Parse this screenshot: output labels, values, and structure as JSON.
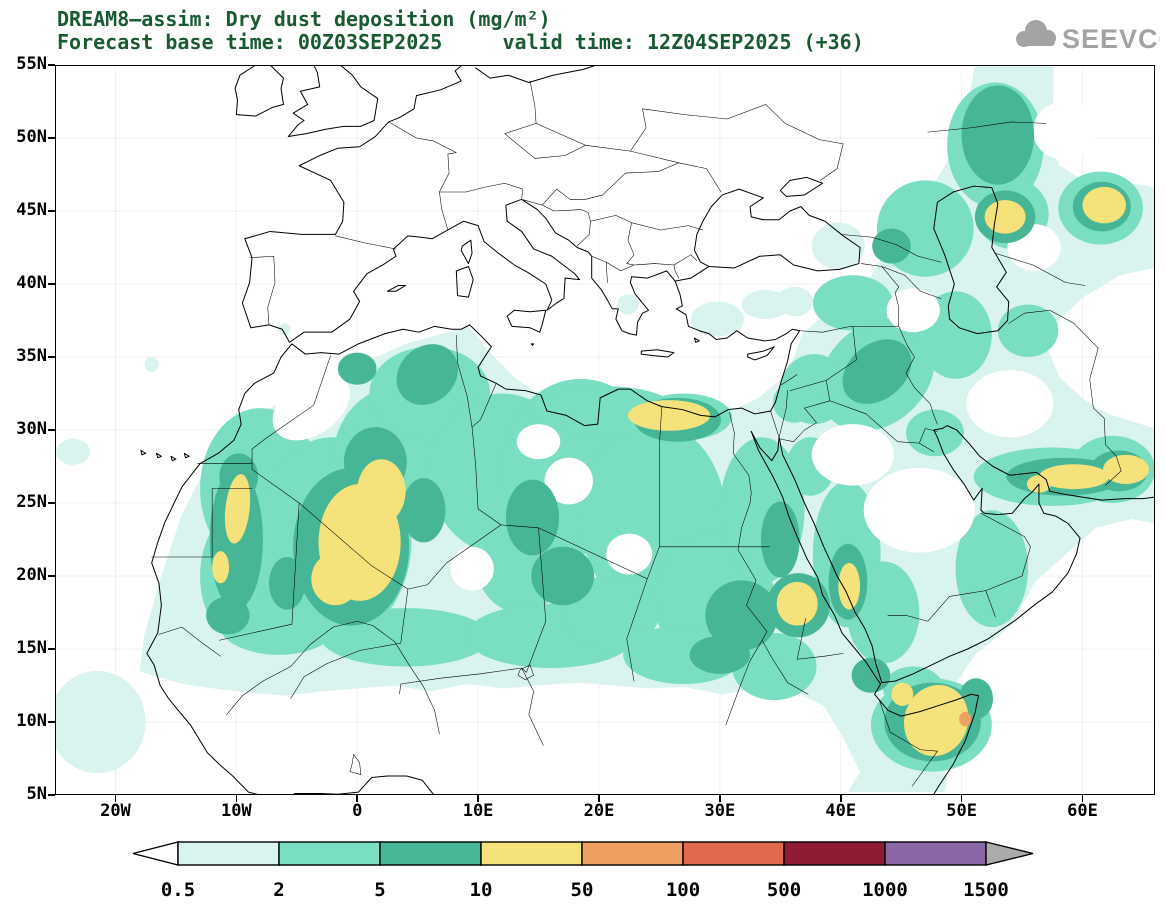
{
  "header": {
    "line1": "DREAM8—assim: Dry dust deposition (mg/m²)",
    "line2": "Forecast base time: 00Z03SEP2025     valid time: 12Z04SEP2025 (+36)",
    "title_color": "#1a5a32"
  },
  "logo": {
    "name": "SEEVCCC",
    "color": "#a3a3a3"
  },
  "axes": {
    "lat_ticks": [
      "55N",
      "50N",
      "45N",
      "40N",
      "35N",
      "30N",
      "25N",
      "20N",
      "15N",
      "10N",
      "5N"
    ],
    "lon_ticks": [
      "20W",
      "10W",
      "0",
      "10E",
      "20E",
      "30E",
      "40E",
      "50E",
      "60E"
    ]
  },
  "colorbar": {
    "levels": [
      "0.5",
      "2",
      "5",
      "10",
      "50",
      "100",
      "500",
      "1000",
      "1500"
    ],
    "colors": [
      "#ffffff",
      "#d9f3ef",
      "#79dec2",
      "#46b697",
      "#f6e27a",
      "#eea063",
      "#e06a4e",
      "#8e1d33",
      "#8a68a8",
      "#ababab"
    ]
  },
  "chart_data": {
    "type": "heatmap",
    "title": "DREAM8—assim: Dry dust deposition (mg/m²)",
    "variable": "Dry dust deposition",
    "units": "mg/m²",
    "forecast_base_time": "00Z03SEP2025",
    "valid_time": "12Z04SEP2025 (+36)",
    "lon_range": [
      -25,
      66
    ],
    "lat_range": [
      5,
      55
    ],
    "x_tick_labels": [
      "20W",
      "10W",
      "0",
      "10E",
      "20E",
      "30E",
      "40E",
      "50E",
      "60E"
    ],
    "y_tick_labels": [
      "5N",
      "10N",
      "15N",
      "20N",
      "25N",
      "30N",
      "35N",
      "40N",
      "45N",
      "50N",
      "55N"
    ],
    "contour_levels": [
      0.5,
      2,
      5,
      10,
      50,
      100,
      500,
      1000,
      1500
    ],
    "palette": [
      "#d9f3ef",
      "#79dec2",
      "#46b697",
      "#f6e27a",
      "#eea063",
      "#e06a4e",
      "#8e1d33",
      "#8a68a8",
      "#ababab"
    ],
    "legend_position": "bottom",
    "grid": "dotted",
    "notable_maxima": [
      {
        "region": "southern Algeria / northern Mali",
        "level": "10-50"
      },
      {
        "region": "Atlantic coast of Morocco / Western Sahara near 25N",
        "level": "10-50"
      },
      {
        "region": "NE Libya / NW Egypt Mediterranean coast",
        "level": "10-50"
      },
      {
        "region": "eastern Sudan / Eritrea near 18N",
        "level": "10-50"
      },
      {
        "region": "Horn of Africa and Gulf of Aden",
        "level": "50-100 local spot"
      },
      {
        "region": "Red Sea coast of Saudi Arabia near 19N",
        "level": "10-50"
      },
      {
        "region": "Makran coast of SE Iran",
        "level": "10-50"
      },
      {
        "region": "east of Caspian Sea near 44N",
        "level": "10-50"
      },
      {
        "region": "NE corner near 62E 45N",
        "level": "10-50"
      }
    ]
  }
}
